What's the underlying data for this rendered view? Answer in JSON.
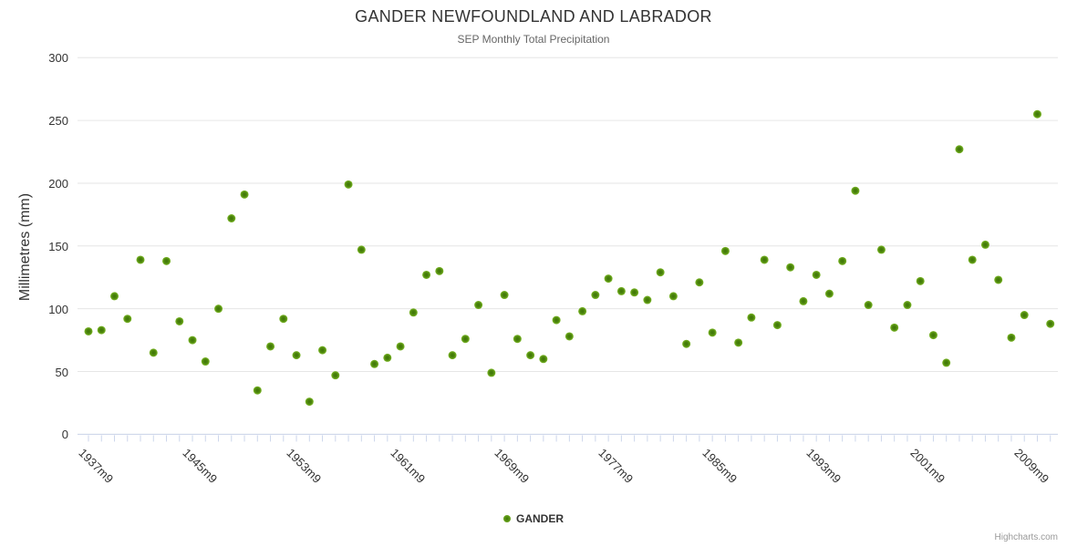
{
  "chart": {
    "title": "GANDER NEWFOUNDLAND AND LABRADOR",
    "subtitle": "SEP Monthly Total Precipitation",
    "credit": "Highcharts.com"
  },
  "legend": {
    "label": "GANDER"
  },
  "colors": {
    "marker_edge": "#7db928",
    "marker_center": "#3e7606",
    "grid": "#e6e6e6",
    "axis_line": "#ccd6eb",
    "title": "#333333",
    "subtitle": "#666666",
    "labels": "#333333",
    "credit": "#999999"
  },
  "chart_data": {
    "type": "scatter",
    "title": "GANDER NEWFOUNDLAND AND LABRADOR",
    "subtitle": "SEP Monthly Total Precipitation",
    "xlabel": "",
    "ylabel": "Millimetres (mm)",
    "ylim": [
      0,
      300
    ],
    "ytick_interval": 50,
    "y_tick_labels": [
      "0",
      "50",
      "100",
      "150",
      "200",
      "250",
      "300"
    ],
    "grid": true,
    "legend_position": "bottom-center",
    "x_categories": [
      "1937m9",
      "1938m9",
      "1939m9",
      "1940m9",
      "1941m9",
      "1942m9",
      "1943m9",
      "1944m9",
      "1945m9",
      "1946m9",
      "1947m9",
      "1948m9",
      "1949m9",
      "1950m9",
      "1951m9",
      "1952m9",
      "1953m9",
      "1954m9",
      "1955m9",
      "1956m9",
      "1957m9",
      "1958m9",
      "1959m9",
      "1960m9",
      "1961m9",
      "1962m9",
      "1963m9",
      "1964m9",
      "1965m9",
      "1966m9",
      "1967m9",
      "1968m9",
      "1969m9",
      "1970m9",
      "1971m9",
      "1972m9",
      "1973m9",
      "1974m9",
      "1975m9",
      "1976m9",
      "1977m9",
      "1978m9",
      "1979m9",
      "1980m9",
      "1981m9",
      "1982m9",
      "1983m9",
      "1984m9",
      "1985m9",
      "1986m9",
      "1987m9",
      "1988m9",
      "1989m9",
      "1990m9",
      "1991m9",
      "1992m9",
      "1993m9",
      "1994m9",
      "1995m9",
      "1996m9",
      "1997m9",
      "1998m9",
      "1999m9",
      "2000m9",
      "2001m9",
      "2002m9",
      "2003m9",
      "2004m9",
      "2005m9",
      "2006m9",
      "2007m9",
      "2008m9",
      "2009m9",
      "2010m9",
      "2011m9"
    ],
    "x_tick_labels": [
      "1937m9",
      "1945m9",
      "1953m9",
      "1961m9",
      "1969m9",
      "1977m9",
      "1985m9",
      "1993m9",
      "2001m9",
      "2009m9"
    ],
    "series": [
      {
        "name": "GANDER",
        "color": "#7db928",
        "values": [
          82,
          83,
          110,
          92,
          139,
          65,
          138,
          90,
          75,
          58,
          100,
          172,
          191,
          35,
          70,
          92,
          63,
          26,
          67,
          47,
          199,
          147,
          56,
          61,
          70,
          97,
          127,
          130,
          63,
          76,
          103,
          49,
          111,
          76,
          63,
          60,
          91,
          78,
          98,
          111,
          124,
          114,
          113,
          107,
          129,
          110,
          72,
          121,
          81,
          146,
          73,
          93,
          139,
          87,
          133,
          106,
          127,
          112,
          138,
          194,
          103,
          147,
          85,
          103,
          122,
          79,
          57,
          227,
          139,
          151,
          123,
          77,
          95,
          255,
          88
        ]
      }
    ]
  }
}
